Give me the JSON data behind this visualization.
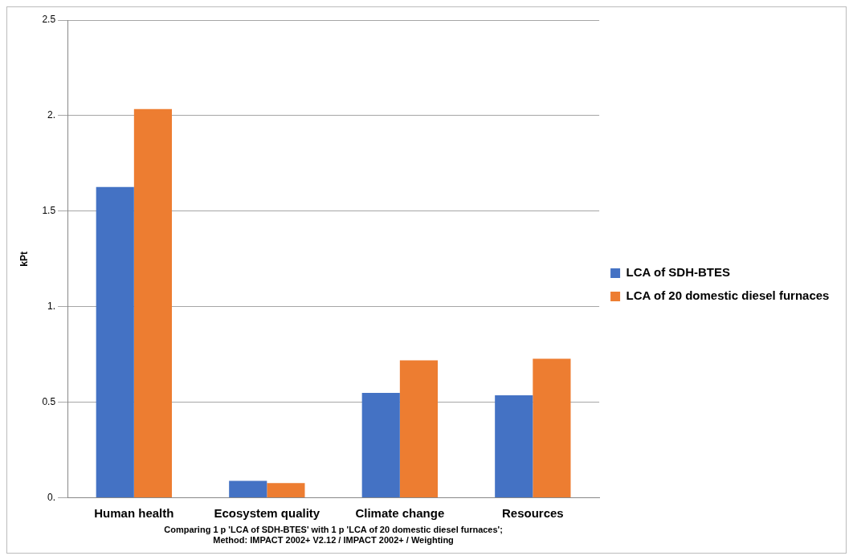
{
  "chart_data": {
    "type": "bar",
    "categories": [
      "Human health",
      "Ecosystem quality",
      "Climate change",
      "Resources"
    ],
    "series": [
      {
        "name": "LCA of SDH-BTES",
        "color": "#4472c4",
        "values": [
          1.626,
          0.089,
          0.549,
          0.536
        ]
      },
      {
        "name": "LCA of 20 domestic diesel furnaces",
        "color": "#ed7d31",
        "values": [
          2.034,
          0.077,
          0.719,
          0.728
        ]
      }
    ],
    "ylabel": "kPt",
    "xlabel": "Comparing 1 p 'LCA of SDH-BTES' with 1 p 'LCA of 20 domestic diesel furnaces';\nMethod: IMPACT 2002+ V2.12 / IMPACT 2002+ / Weighting",
    "ylim": [
      0,
      2.5
    ],
    "yticks": [
      {
        "value": 0,
        "label": "0."
      },
      {
        "value": 0.5,
        "label": "0.5"
      },
      {
        "value": 1,
        "label": "1."
      },
      {
        "value": 1.5,
        "label": "1.5"
      },
      {
        "value": 2,
        "label": "2."
      },
      {
        "value": 2.5,
        "label": "2.5"
      }
    ],
    "grid": "y",
    "legend": "right"
  }
}
